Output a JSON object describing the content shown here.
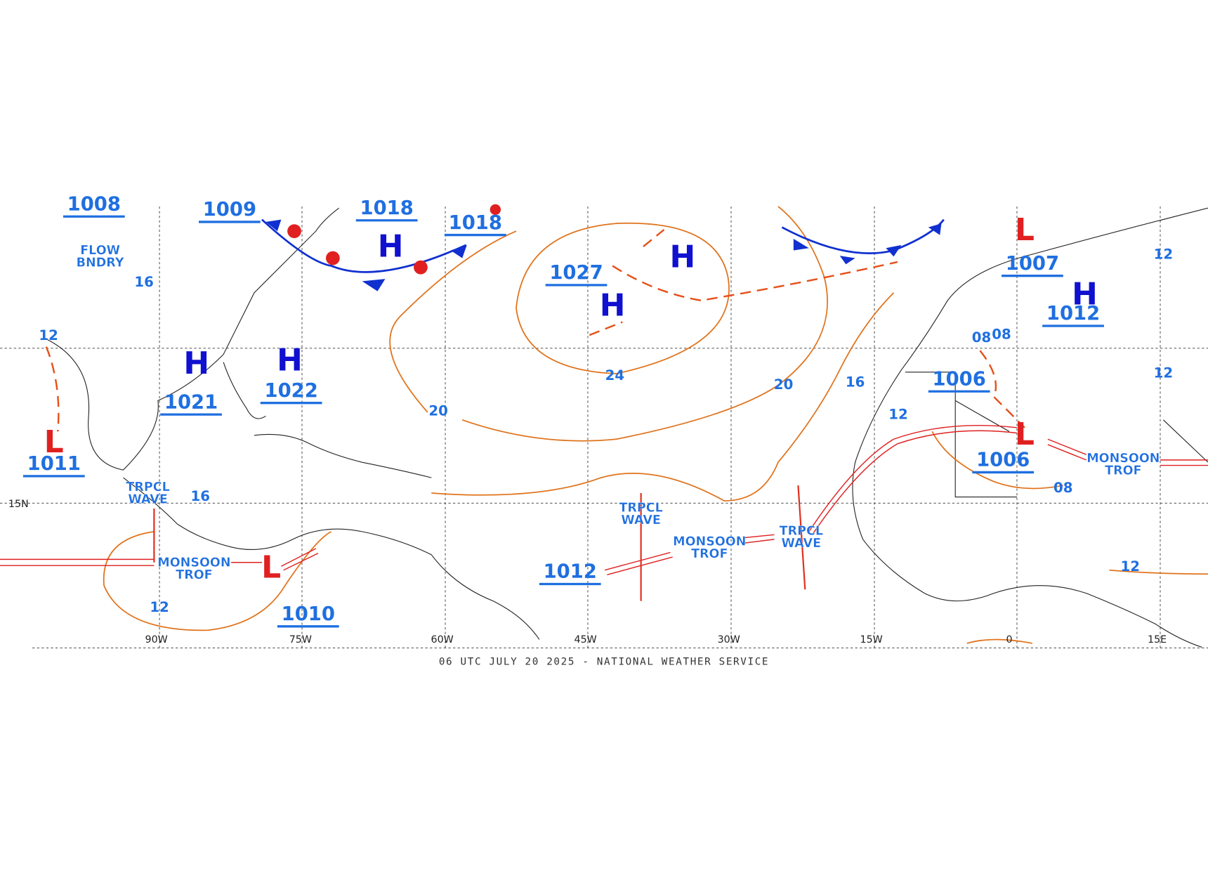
{
  "footer": "06 UTC JULY 20 2025 - NATIONAL WEATHER SERVICE",
  "grid_labels": {
    "longitudes": [
      "90W",
      "75W",
      "60W",
      "45W",
      "30W",
      "15W",
      "0",
      "15E"
    ],
    "latitudes": [
      "15N"
    ]
  },
  "pressure_centers": [
    {
      "symbol": "H",
      "pressure": "1027"
    },
    {
      "symbol": "H"
    },
    {
      "symbol": "H",
      "pressure": "1018"
    },
    {
      "pressure": "1018"
    },
    {
      "symbol": "H",
      "pressure": "1021"
    },
    {
      "symbol": "H",
      "pressure": "1022"
    },
    {
      "pressure": "1009"
    },
    {
      "pressure": "1008"
    },
    {
      "symbol": "L",
      "pressure": "1011"
    },
    {
      "symbol": "L",
      "pressure": "1010"
    },
    {
      "pressure": "1012"
    },
    {
      "symbol": "L",
      "pressure": "1007"
    },
    {
      "symbol": "H",
      "pressure": "1012"
    },
    {
      "pressure": "1006"
    },
    {
      "symbol": "L",
      "pressure": "1006"
    }
  ],
  "isobar_labels": [
    "24",
    "20",
    "20",
    "16",
    "12",
    "16",
    "12",
    "12",
    "12",
    "08",
    "08",
    "08",
    "12",
    "12",
    "16"
  ],
  "features": [
    {
      "lines": [
        "FLOW",
        "BNDRY"
      ]
    },
    {
      "lines": [
        "TRPCL",
        "WAVE"
      ]
    },
    {
      "lines": [
        "TRPCL",
        "WAVE"
      ]
    },
    {
      "lines": [
        "TRPCL",
        "WAVE"
      ]
    },
    {
      "lines": [
        "MONSOON",
        "TROF"
      ]
    },
    {
      "lines": [
        "MONSOON",
        "TROF"
      ]
    },
    {
      "lines": [
        "MONSOON",
        "TROF"
      ]
    }
  ]
}
